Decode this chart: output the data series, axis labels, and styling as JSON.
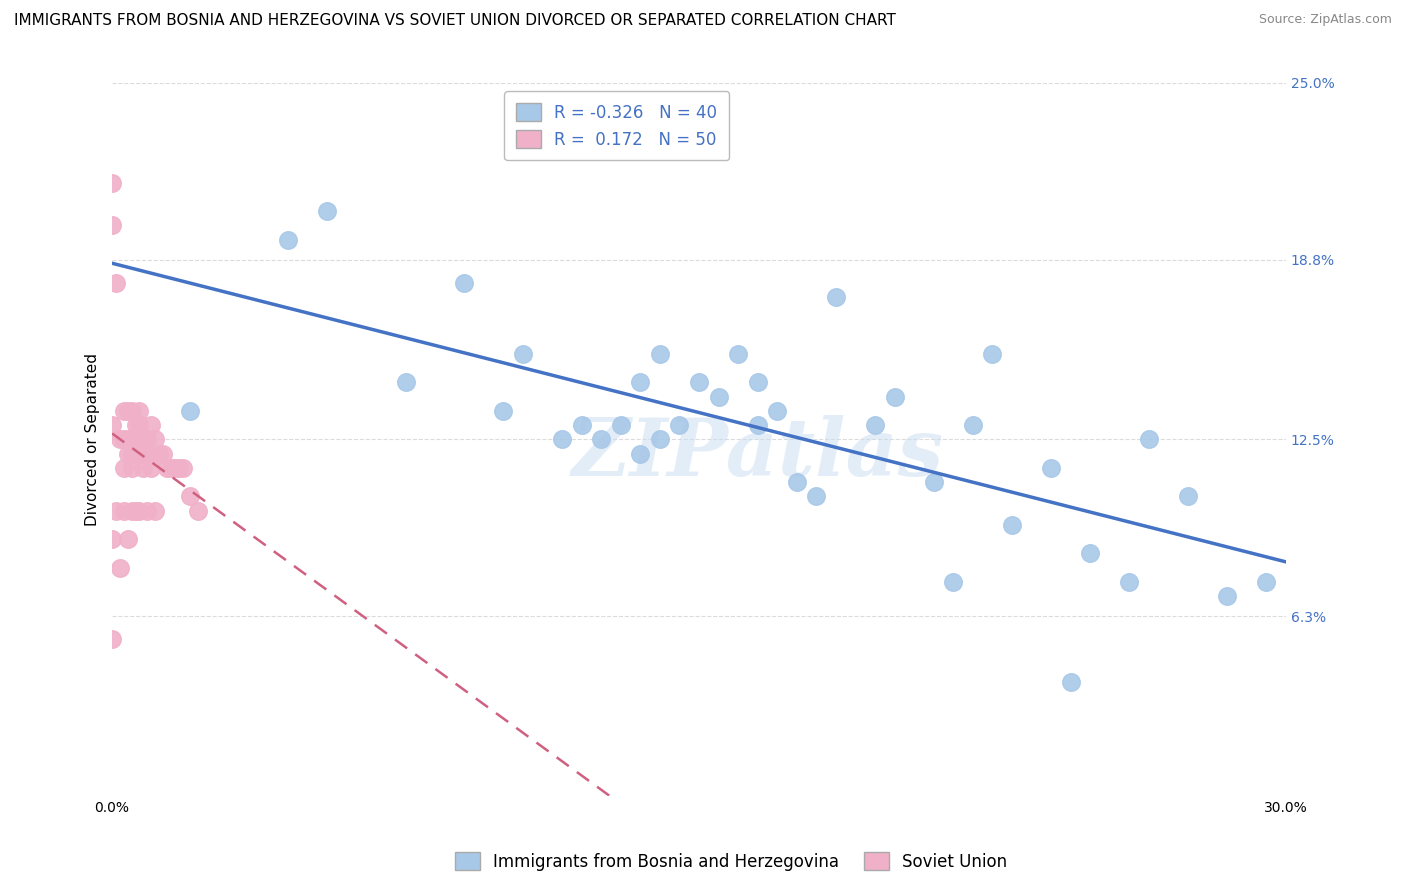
{
  "title": "IMMIGRANTS FROM BOSNIA AND HERZEGOVINA VS SOVIET UNION DIVORCED OR SEPARATED CORRELATION CHART",
  "source": "Source: ZipAtlas.com",
  "ylabel": "Divorced or Separated",
  "watermark": "ZIPatlas",
  "xlim": [
    0.0,
    0.3
  ],
  "ylim": [
    0.0,
    0.25
  ],
  "xtick_positions": [
    0.0,
    0.3
  ],
  "xticklabels": [
    "0.0%",
    "30.0%"
  ],
  "ytick_positions": [
    0.063,
    0.125,
    0.188,
    0.25
  ],
  "ytick_labels": [
    "6.3%",
    "12.5%",
    "18.8%",
    "25.0%"
  ],
  "bosnia_R": -0.326,
  "bosnia_N": 40,
  "soviet_R": 0.172,
  "soviet_N": 50,
  "bosnia_color": "#a8c8e8",
  "soviet_color": "#f0b0c8",
  "bosnia_line_color": "#4472c4",
  "soviet_line_color": "#d06080",
  "bosnia_points_x": [
    0.02,
    0.045,
    0.055,
    0.075,
    0.09,
    0.1,
    0.105,
    0.115,
    0.12,
    0.125,
    0.13,
    0.135,
    0.135,
    0.14,
    0.14,
    0.145,
    0.15,
    0.155,
    0.16,
    0.165,
    0.165,
    0.17,
    0.175,
    0.18,
    0.185,
    0.195,
    0.2,
    0.21,
    0.215,
    0.22,
    0.225,
    0.23,
    0.24,
    0.245,
    0.25,
    0.26,
    0.265,
    0.275,
    0.285,
    0.295
  ],
  "bosnia_points_y": [
    0.135,
    0.195,
    0.205,
    0.145,
    0.18,
    0.135,
    0.155,
    0.125,
    0.13,
    0.125,
    0.13,
    0.12,
    0.145,
    0.125,
    0.155,
    0.13,
    0.145,
    0.14,
    0.155,
    0.145,
    0.13,
    0.135,
    0.11,
    0.105,
    0.175,
    0.13,
    0.14,
    0.11,
    0.075,
    0.13,
    0.155,
    0.095,
    0.115,
    0.04,
    0.085,
    0.075,
    0.125,
    0.105,
    0.07,
    0.075
  ],
  "soviet_points_x": [
    0.0,
    0.0,
    0.0,
    0.0,
    0.0,
    0.001,
    0.001,
    0.002,
    0.002,
    0.003,
    0.003,
    0.003,
    0.003,
    0.004,
    0.004,
    0.004,
    0.004,
    0.005,
    0.005,
    0.005,
    0.005,
    0.005,
    0.006,
    0.006,
    0.006,
    0.006,
    0.007,
    0.007,
    0.007,
    0.007,
    0.007,
    0.008,
    0.008,
    0.008,
    0.009,
    0.009,
    0.009,
    0.01,
    0.01,
    0.011,
    0.011,
    0.012,
    0.013,
    0.014,
    0.015,
    0.016,
    0.017,
    0.018,
    0.02,
    0.022
  ],
  "soviet_points_y": [
    0.215,
    0.2,
    0.13,
    0.09,
    0.055,
    0.18,
    0.1,
    0.125,
    0.08,
    0.135,
    0.125,
    0.115,
    0.1,
    0.135,
    0.125,
    0.12,
    0.09,
    0.135,
    0.125,
    0.12,
    0.115,
    0.1,
    0.13,
    0.125,
    0.12,
    0.1,
    0.135,
    0.13,
    0.125,
    0.12,
    0.1,
    0.125,
    0.12,
    0.115,
    0.125,
    0.12,
    0.1,
    0.13,
    0.115,
    0.125,
    0.1,
    0.12,
    0.12,
    0.115,
    0.115,
    0.115,
    0.115,
    0.115,
    0.105,
    0.1
  ],
  "background_color": "#ffffff",
  "grid_color": "#cccccc",
  "title_fontsize": 11,
  "axis_label_fontsize": 11,
  "tick_fontsize": 10,
  "legend_fontsize": 12
}
